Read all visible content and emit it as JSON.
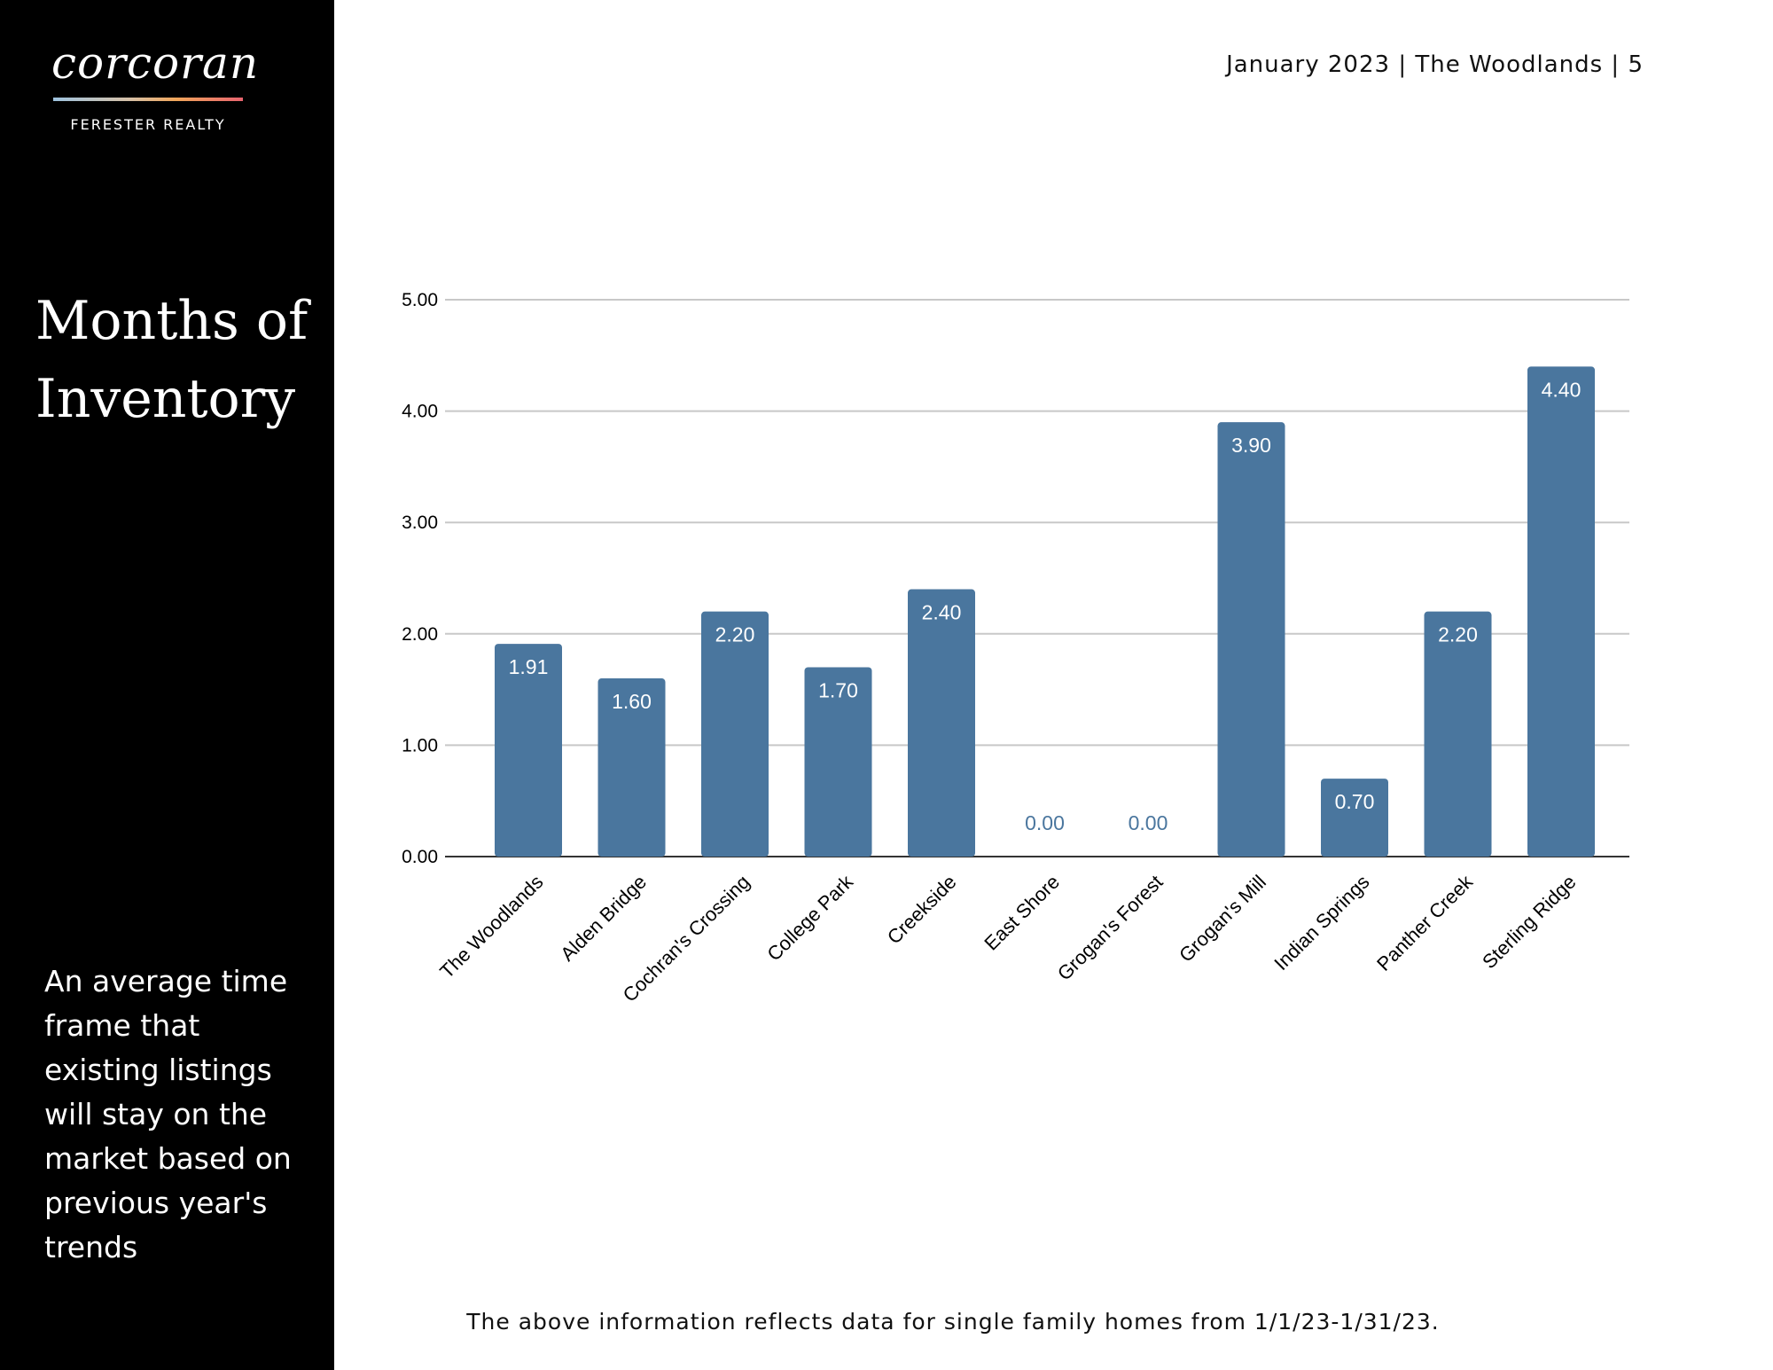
{
  "brand": {
    "name": "corcoran",
    "subtitle": "FERESTER REALTY"
  },
  "header": {
    "text": "January 2023 | The Woodlands | 5"
  },
  "sidebar": {
    "title_line1": "Months of",
    "title_line2": "Inventory",
    "description": "An average time frame that existing listings will stay on the market based on previous year's trends"
  },
  "footer": {
    "note": "The above information reflects data for single family homes from 1/1/23-1/31/23."
  },
  "colors": {
    "bar": "#4a769e",
    "zero_label": "#4a769e",
    "bar_label": "#ffffff"
  },
  "chart_data": {
    "type": "bar",
    "title": "",
    "xlabel": "",
    "ylabel": "",
    "ylim": [
      0,
      5
    ],
    "yticks": [
      "0.00",
      "1.00",
      "2.00",
      "3.00",
      "4.00",
      "5.00"
    ],
    "grid": true,
    "categories": [
      "The Woodlands",
      "Alden Bridge",
      "Cochran's Crossing",
      "College Park",
      "Creekside",
      "East Shore",
      "Grogan's Forest",
      "Grogan's Mill",
      "Indian Springs",
      "Panther Creek",
      "Sterling Ridge"
    ],
    "values": [
      1.91,
      1.6,
      2.2,
      1.7,
      2.4,
      0.0,
      0.0,
      3.9,
      0.7,
      2.2,
      4.4
    ],
    "data_labels": [
      "1.91",
      "1.60",
      "2.20",
      "1.70",
      "2.40",
      "0.00",
      "0.00",
      "3.90",
      "0.70",
      "2.20",
      "4.40"
    ]
  }
}
